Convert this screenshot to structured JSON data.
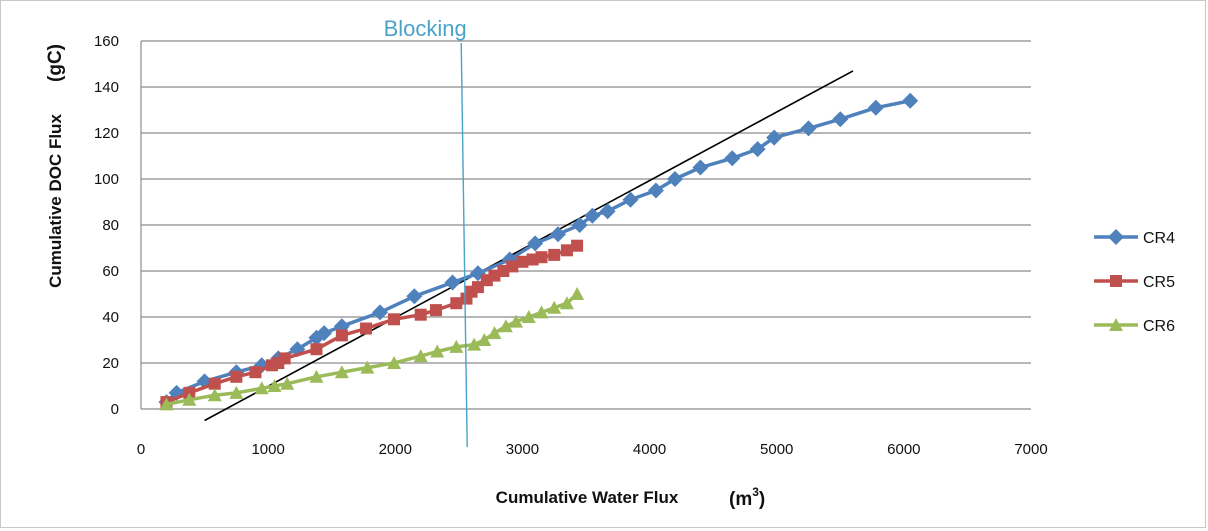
{
  "chart_data": {
    "type": "scatter",
    "title": "",
    "xlabel": "Cumulative Water Flux",
    "xlabel_unit_prefix": "(m",
    "xlabel_unit_sup": "3",
    "xlabel_unit_suffix": ")",
    "ylabel": "Cumulative DOC Flux",
    "ylabel_unit": "(gC)",
    "xlim": [
      0,
      7000
    ],
    "ylim": [
      0,
      160
    ],
    "x_ticks": [
      "0",
      "1000",
      "2000",
      "3000",
      "4000",
      "5000",
      "6000",
      "7000"
    ],
    "y_ticks": [
      "0",
      "20",
      "40",
      "60",
      "80",
      "100",
      "120",
      "140",
      "160"
    ],
    "grid": "horizontal",
    "legend_position": "right",
    "series": [
      {
        "name": "CR4",
        "color": "#4f81bd",
        "marker": "diamond",
        "points": [
          [
            200,
            3
          ],
          [
            280,
            7
          ],
          [
            500,
            12
          ],
          [
            750,
            16
          ],
          [
            950,
            19
          ],
          [
            1080,
            22
          ],
          [
            1230,
            26
          ],
          [
            1380,
            31
          ],
          [
            1440,
            33
          ],
          [
            1580,
            36
          ],
          [
            1880,
            42
          ],
          [
            2150,
            49
          ],
          [
            2450,
            55
          ],
          [
            2650,
            59
          ],
          [
            2900,
            65
          ],
          [
            3100,
            72
          ],
          [
            3280,
            76
          ],
          [
            3450,
            80
          ],
          [
            3550,
            84
          ],
          [
            3670,
            86
          ],
          [
            3850,
            91
          ],
          [
            4050,
            95
          ],
          [
            4200,
            100
          ],
          [
            4400,
            105
          ],
          [
            4650,
            109
          ],
          [
            4850,
            113
          ],
          [
            4980,
            118
          ],
          [
            5250,
            122
          ],
          [
            5500,
            126
          ],
          [
            5780,
            131
          ],
          [
            6050,
            134
          ]
        ]
      },
      {
        "name": "CR5",
        "color": "#c0504d",
        "marker": "square",
        "points": [
          [
            200,
            3
          ],
          [
            380,
            7
          ],
          [
            580,
            11
          ],
          [
            750,
            14
          ],
          [
            900,
            16
          ],
          [
            1030,
            19
          ],
          [
            1080,
            20
          ],
          [
            1130,
            22
          ],
          [
            1380,
            26
          ],
          [
            1580,
            32
          ],
          [
            1770,
            35
          ],
          [
            1990,
            39
          ],
          [
            2200,
            41
          ],
          [
            2320,
            43
          ],
          [
            2480,
            46
          ],
          [
            2560,
            48
          ],
          [
            2600,
            51
          ],
          [
            2650,
            53
          ],
          [
            2720,
            56
          ],
          [
            2780,
            58
          ],
          [
            2850,
            60
          ],
          [
            2920,
            62
          ],
          [
            3000,
            64
          ],
          [
            3080,
            65
          ],
          [
            3150,
            66
          ],
          [
            3250,
            67
          ],
          [
            3350,
            69
          ],
          [
            3430,
            71
          ]
        ]
      },
      {
        "name": "CR6",
        "color": "#9bbb59",
        "marker": "triangle",
        "points": [
          [
            200,
            2
          ],
          [
            380,
            4
          ],
          [
            580,
            6
          ],
          [
            750,
            7
          ],
          [
            950,
            9
          ],
          [
            1050,
            10
          ],
          [
            1150,
            11
          ],
          [
            1380,
            14
          ],
          [
            1580,
            16
          ],
          [
            1780,
            18
          ],
          [
            1990,
            20
          ],
          [
            2200,
            23
          ],
          [
            2330,
            25
          ],
          [
            2480,
            27
          ],
          [
            2620,
            28
          ],
          [
            2700,
            30
          ],
          [
            2780,
            33
          ],
          [
            2870,
            36
          ],
          [
            2950,
            38
          ],
          [
            3050,
            40
          ],
          [
            3150,
            42
          ],
          [
            3250,
            44
          ],
          [
            3350,
            46
          ],
          [
            3430,
            50
          ]
        ]
      }
    ],
    "trend_line": {
      "color": "#000000",
      "points": [
        [
          500,
          -5
        ],
        [
          5600,
          147
        ]
      ]
    },
    "annotation": {
      "label": "Blocking",
      "x": 2550,
      "color": "#4aa3c8"
    }
  }
}
